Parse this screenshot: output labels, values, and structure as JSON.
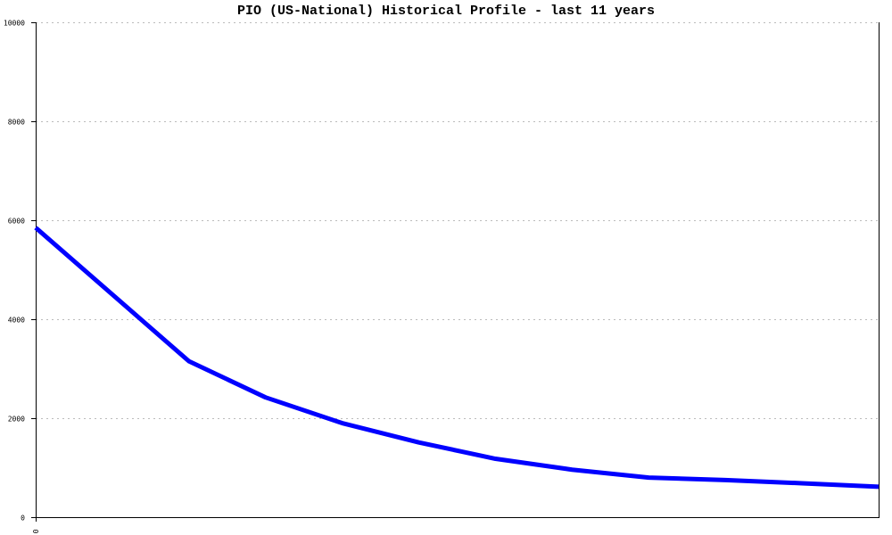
{
  "chart_data": {
    "type": "line",
    "title": "PIO (US-National) Historical Profile - last 11 years",
    "xlabel": "",
    "ylabel": "",
    "x_tick_labels": [
      "0"
    ],
    "y_tick_labels": [
      "0",
      "2000",
      "4000",
      "6000",
      "8000",
      "10000"
    ],
    "ylim": [
      0,
      10000
    ],
    "xlim": [
      0,
      11
    ],
    "grid": "horizontal dotted",
    "line_color": "#0000ff",
    "series": [
      {
        "x": [
          0,
          1,
          2,
          3,
          4,
          5,
          6,
          7,
          8,
          9,
          10,
          11
        ],
        "values": [
          5850,
          4500,
          3150,
          2420,
          1900,
          1510,
          1180,
          960,
          800,
          750,
          685,
          615
        ]
      }
    ]
  }
}
